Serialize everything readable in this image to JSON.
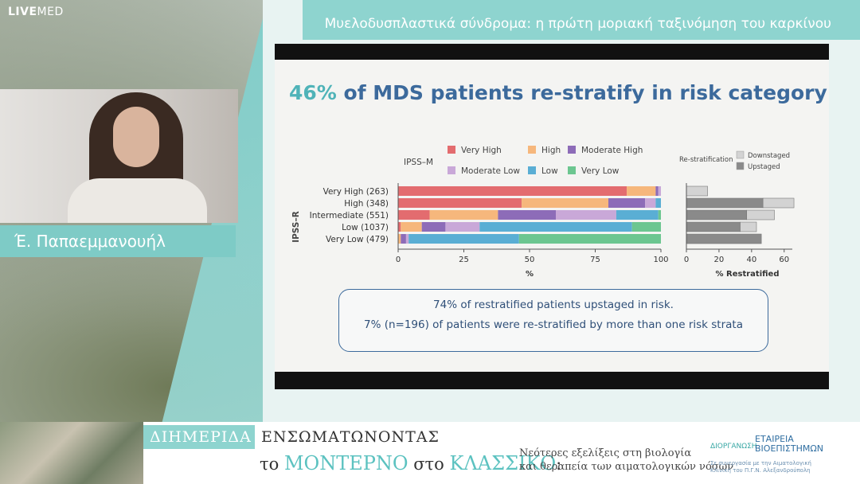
{
  "header": {
    "logo_bold": "LIVE",
    "logo_light": "MED",
    "title": "Μυελοδυσπλαστικά σύνδρομα: η πρώτη μοριακή ταξινόμηση του καρκίνου"
  },
  "speaker": {
    "name": "Έ. Παπαεμμανουήλ"
  },
  "slide": {
    "heading_pct": "46%",
    "heading_rest": " of MDS patients re-stratify in risk category",
    "info_lines": [
      "74% of restratified  patients upstaged in risk.",
      "7% (n=196) of patients were re-stratified by more than one risk strata"
    ]
  },
  "chart_data": [
    {
      "type": "bar",
      "orientation": "horizontal",
      "stacked": true,
      "ylabel": "IPSS–R",
      "xlabel": "%",
      "legend_title": "IPSS–M",
      "legend_position": "top",
      "categories": [
        "Very High (263)",
        "High (348)",
        "Intermediate (551)",
        "Low (1037)",
        "Very Low (479)"
      ],
      "xlim": [
        0,
        100
      ],
      "xticks": [
        0,
        25,
        50,
        75,
        100
      ],
      "series": [
        {
          "name": "Very High",
          "color": "#e36c6f",
          "values": [
            87,
            47,
            12,
            1,
            0
          ]
        },
        {
          "name": "High",
          "color": "#f6b77c",
          "values": [
            11,
            33,
            26,
            8,
            1
          ]
        },
        {
          "name": "Moderate High",
          "color": "#8d6cb8",
          "values": [
            1,
            14,
            22,
            9,
            2
          ]
        },
        {
          "name": "Moderate Low",
          "color": "#c9a8d8",
          "values": [
            1,
            4,
            23,
            13,
            1
          ]
        },
        {
          "name": "Low",
          "color": "#5aaed4",
          "values": [
            0,
            2,
            16,
            58,
            42
          ]
        },
        {
          "name": "Very Low",
          "color": "#6cc690",
          "values": [
            0,
            0,
            1,
            11,
            54
          ]
        }
      ]
    },
    {
      "type": "bar",
      "orientation": "horizontal",
      "stacked": true,
      "xlabel": "% Restratified",
      "legend_title": "Re-stratification",
      "legend_position": "top",
      "categories": [
        "Very High (263)",
        "High (348)",
        "Intermediate (551)",
        "Low (1037)",
        "Very Low (479)"
      ],
      "xlim": [
        0,
        65
      ],
      "xticks": [
        0,
        20,
        40,
        60
      ],
      "series": [
        {
          "name": "Upstaged",
          "color": "#8a8a8a",
          "values": [
            0,
            47,
            37,
            33,
            46
          ]
        },
        {
          "name": "Downstaged",
          "color": "#d3d3d3",
          "values": [
            13,
            19,
            17,
            10,
            0
          ]
        }
      ]
    }
  ],
  "footer": {
    "dihmerida": "ΔΙΗΜΕΡΙΔΑ",
    "line1": "ΕΝΣΩΜΑΤΩΝΟΝΤΑΣ",
    "line2_a": "το ",
    "line2_b": "ΜΟΝΤΕΡΝΟ",
    "line2_c": " στο ",
    "line2_d": "ΚΛΑΣΣΙΚΟ",
    "line2_e": ":",
    "sub1": "Νεότερες εξελίξεις στη βιολογία",
    "sub2": "και θεραπεία των αιματολογικών νόσων",
    "org_label": "ΔΙΟΡΓΑΝΩΣΗ",
    "org_name1": "ΕΤΑΙΡΕΙΑ",
    "org_name2": "ΒΙΟΕΠΙΣΤΗΜΩΝ",
    "org_sub1": "Σε συνεργασία με την Αιματολογική",
    "org_sub2": "Κλινική του Π.Γ.Ν. Αλεξανδρούπολη"
  }
}
